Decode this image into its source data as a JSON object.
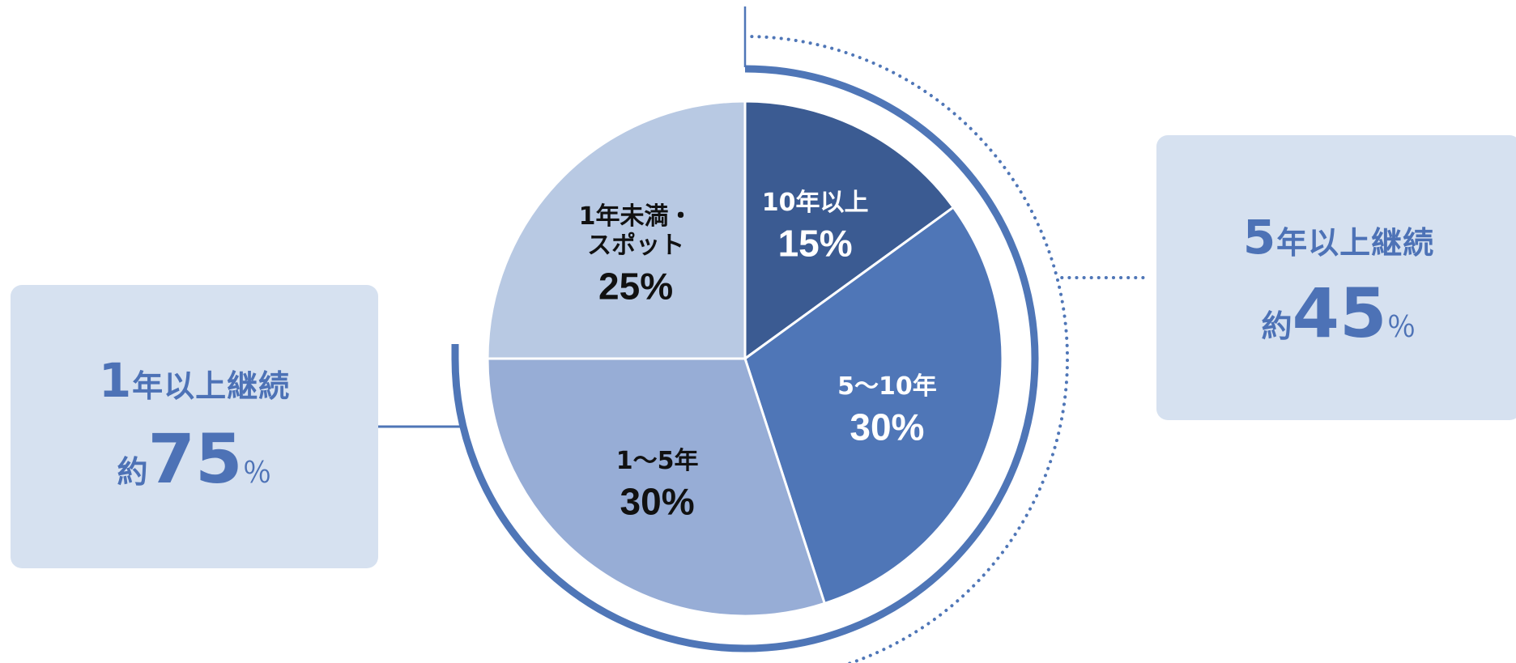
{
  "chart_data": {
    "type": "pie",
    "start": "12 o'clock",
    "direction": "clockwise",
    "slices": [
      {
        "label": "10年以上",
        "value": 15,
        "value_label": "15%",
        "color": "#3b5b92",
        "text_color": "#ffffff"
      },
      {
        "label": "5〜10年",
        "value": 30,
        "value_label": "30%",
        "color": "#4f76b7",
        "text_color": "#ffffff"
      },
      {
        "label": "1〜5年",
        "value": 30,
        "value_label": "30%",
        "color": "#97add6",
        "text_color": "#111111"
      },
      {
        "label_lines": [
          "1年未満・",
          "スポット"
        ],
        "value": 25,
        "value_label": "25%",
        "color": "#b8c9e3",
        "text_color": "#111111"
      }
    ],
    "annotations": {
      "five_plus": {
        "title_num": "5",
        "title_rest": "年以上継続",
        "prefix": "約",
        "value": "45",
        "unit": "％",
        "covers_slices": [
          "10年以上",
          "5〜10年"
        ]
      },
      "one_plus": {
        "title_num": "1",
        "title_rest": "年以上継続",
        "prefix": "約",
        "value": "75",
        "unit": "％",
        "covers_slices": [
          "10年以上",
          "5〜10年",
          "1〜5年"
        ]
      }
    }
  },
  "colors": {
    "accent": "#4f76b7",
    "callout_bg": "#d6e1f0",
    "callout_text": "#4d72b6"
  }
}
